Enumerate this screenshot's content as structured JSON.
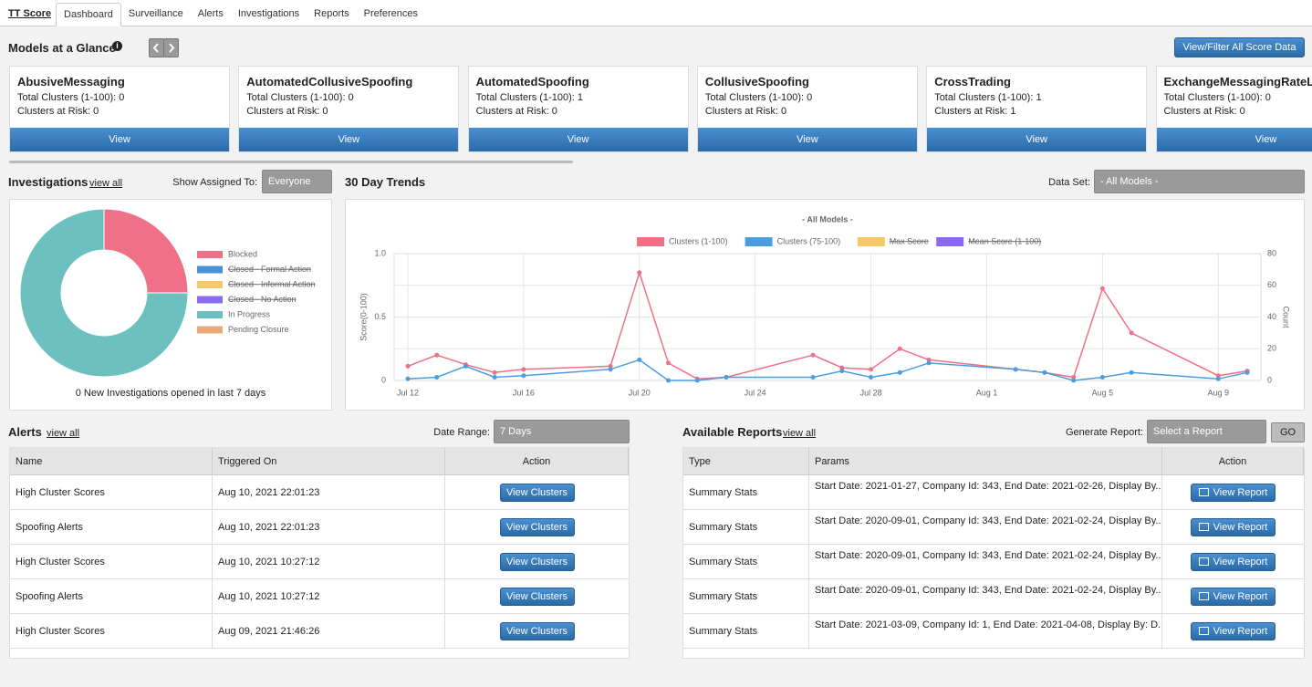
{
  "nav": {
    "brand": "TT Score",
    "tabs": [
      "Dashboard",
      "Surveillance",
      "Alerts",
      "Investigations",
      "Reports",
      "Preferences"
    ]
  },
  "glance": {
    "title": "Models at a Glance",
    "filter_button": "View/Filter All Score Data",
    "cards": [
      {
        "name": "AbusiveMessaging",
        "total": "Total Clusters (1-100): 0",
        "risk": "Clusters at Risk: 0",
        "button": "View"
      },
      {
        "name": "AutomatedCollusiveSpoofing",
        "total": "Total Clusters (1-100): 0",
        "risk": "Clusters at Risk: 0",
        "button": "View"
      },
      {
        "name": "AutomatedSpoofing",
        "total": "Total Clusters (1-100): 1",
        "risk": "Clusters at Risk: 0",
        "button": "View"
      },
      {
        "name": "CollusiveSpoofing",
        "total": "Total Clusters (1-100): 0",
        "risk": "Clusters at Risk: 0",
        "button": "View"
      },
      {
        "name": "CrossTrading",
        "total": "Total Clusters (1-100): 1",
        "risk": "Clusters at Risk: 1",
        "button": "View"
      },
      {
        "name": "ExchangeMessagingRateLi",
        "total": "Total Clusters (1-100): 0",
        "risk": "Clusters at Risk: 0",
        "button": "View"
      }
    ]
  },
  "investigations": {
    "title": "Investigations",
    "view_all": "view all",
    "assigned_label": "Show Assigned To:",
    "assigned_value": "Everyone",
    "summary": "0 New Investigations opened in last 7 days"
  },
  "trends": {
    "title": "30 Day Trends",
    "dataset_label": "Data Set:",
    "dataset_value": "- All Models -"
  },
  "chart_data": [
    {
      "type": "pie",
      "donut": true,
      "categories": [
        "Blocked",
        "Closed - Formal Action",
        "Closed - Informal Action",
        "Closed - No Action",
        "In Progress",
        "Pending Closure"
      ],
      "values": [
        1,
        0,
        0,
        0,
        3,
        0
      ],
      "colors": [
        "#f07088",
        "#4a90d9",
        "#f5c96a",
        "#8a6af0",
        "#6cc0c0",
        "#eba878"
      ],
      "hidden": [
        false,
        true,
        true,
        true,
        false,
        false
      ]
    },
    {
      "type": "line",
      "title": "- All Models -",
      "ylabel": "Score(0-100)",
      "y2label": "Count",
      "x": [
        "Jul 12",
        "Jul 13",
        "Jul 14",
        "Jul 15",
        "Jul 16",
        "Jul 19",
        "Jul 20",
        "Jul 21",
        "Jul 22",
        "Jul 23",
        "Jul 26",
        "Jul 27",
        "Jul 28",
        "Jul 29",
        "Jul 30",
        "Aug 2",
        "Aug 3",
        "Aug 4",
        "Aug 5",
        "Aug 6",
        "Aug 9",
        "Aug 10"
      ],
      "xlim": [
        "Jul 12",
        "Aug 10"
      ],
      "xticks": [
        "Jul 12",
        "Jul 16",
        "Jul 20",
        "Jul 24",
        "Jul 28",
        "Aug 1",
        "Aug 5",
        "Aug 9"
      ],
      "ylim": [
        0,
        1
      ],
      "yticks": [
        0,
        0.5,
        {
          "value": 1,
          "label": "1.0"
        }
      ],
      "y2lim": [
        0,
        80
      ],
      "y2ticks": [
        0,
        20,
        40,
        60,
        80
      ],
      "grid": true,
      "series": [
        {
          "name": "Clusters (1-100)",
          "color": "#f07088",
          "axis": "y2",
          "hidden": false,
          "values": [
            9,
            16,
            10,
            5,
            7,
            9,
            68,
            11,
            1,
            2,
            16,
            8,
            7,
            20,
            13,
            7,
            5,
            2,
            58,
            30,
            3,
            6
          ]
        },
        {
          "name": "Clusters (75-100)",
          "color": "#4a9ee0",
          "axis": "y2",
          "hidden": false,
          "values": [
            1,
            2,
            9,
            2,
            3,
            7,
            13,
            0,
            0,
            2,
            2,
            6,
            2,
            5,
            11,
            7,
            5,
            0,
            2,
            5,
            1,
            5
          ]
        },
        {
          "name": "Max Score",
          "color": "#f5c96a",
          "hidden": true,
          "values": [
            null,
            null,
            null,
            null,
            null,
            null,
            null,
            null,
            null,
            null,
            null,
            null,
            null,
            null,
            null,
            null,
            null,
            null,
            null,
            null,
            null,
            null
          ]
        },
        {
          "name": "Mean Score (1-100)",
          "color": "#8a6af0",
          "hidden": true,
          "values": [
            null,
            null,
            null,
            null,
            null,
            null,
            null,
            null,
            null,
            null,
            null,
            null,
            null,
            null,
            null,
            null,
            null,
            null,
            null,
            null,
            null,
            null
          ]
        }
      ]
    }
  ],
  "alerts": {
    "title": "Alerts",
    "view_all": "view all",
    "range_label": "Date Range:",
    "range_value": "7 Days",
    "table": {
      "headers": [
        "Name",
        "Triggered On",
        "Action"
      ],
      "rows": [
        [
          "High Cluster Scores",
          "Aug 10, 2021 22:01:23",
          "View Clusters"
        ],
        [
          "Spoofing Alerts",
          "Aug 10, 2021 22:01:23",
          "View Clusters"
        ],
        [
          "High Cluster Scores",
          "Aug 10, 2021 10:27:12",
          "View Clusters"
        ],
        [
          "Spoofing Alerts",
          "Aug 10, 2021 10:27:12",
          "View Clusters"
        ],
        [
          "High Cluster Scores",
          "Aug 09, 2021 21:46:26",
          "View Clusters"
        ]
      ]
    }
  },
  "reports": {
    "title": "Available Reports",
    "view_all": "view all",
    "generate_label": "Generate Report:",
    "generate_value": "Select a Report",
    "go": "GO",
    "table": {
      "headers": [
        "Type",
        "Params",
        "Action"
      ],
      "rows": [
        [
          "Summary Stats",
          "Start Date: 2021-01-27, Company Id: 343, End Date: 2021-02-26, Display By...",
          "View Report"
        ],
        [
          "Summary Stats",
          "Start Date: 2020-09-01, Company Id: 343, End Date: 2021-02-24, Display By...",
          "View Report"
        ],
        [
          "Summary Stats",
          "Start Date: 2020-09-01, Company Id: 343, End Date: 2021-02-24, Display By...",
          "View Report"
        ],
        [
          "Summary Stats",
          "Start Date: 2020-09-01, Company Id: 343, End Date: 2021-02-24, Display By...",
          "View Report"
        ],
        [
          "Summary Stats",
          "Start Date: 2021-03-09, Company Id: 1, End Date: 2021-04-08, Display By: D...",
          "View Report"
        ]
      ]
    }
  }
}
